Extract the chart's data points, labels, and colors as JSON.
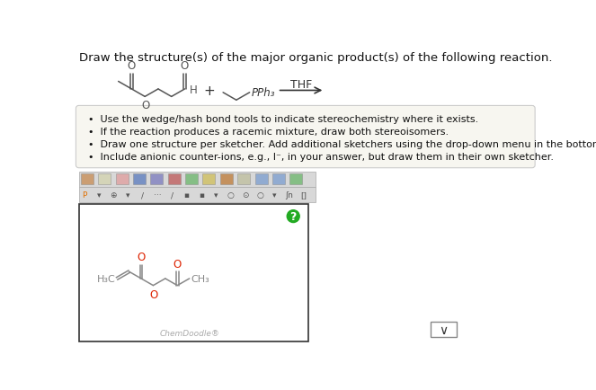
{
  "title": "Draw the structure(s) of the major organic product(s) of the following reaction.",
  "title_fontsize": 9.5,
  "title_color": "#111111",
  "background_color": "#ffffff",
  "bullet_points": [
    "Use the wedge/hash bond tools to indicate stereochemistry where it exists.",
    "If the reaction produces a racemic mixture, draw both stereoisomers.",
    "Draw one structure per sketcher. Add additional sketchers using the drop-down menu in the bottom right corner.",
    "Include anionic counter-ions, e.g., I⁻, in your answer, but draw them in their own sketcher."
  ],
  "bullet_box_bg": "#f7f6f0",
  "bullet_box_border": "#cccccc",
  "sketcher_box_bg": "#ffffff",
  "sketcher_box_border": "#333333",
  "chemdoodle_text": "ChemDoodle®",
  "thf_label": "THF",
  "bond_color": "#555555",
  "O_color": "#dd2200",
  "label_color": "#777777",
  "toolbar_bg": "#e0e0e0",
  "toolbar_border": "#bbbbbb"
}
